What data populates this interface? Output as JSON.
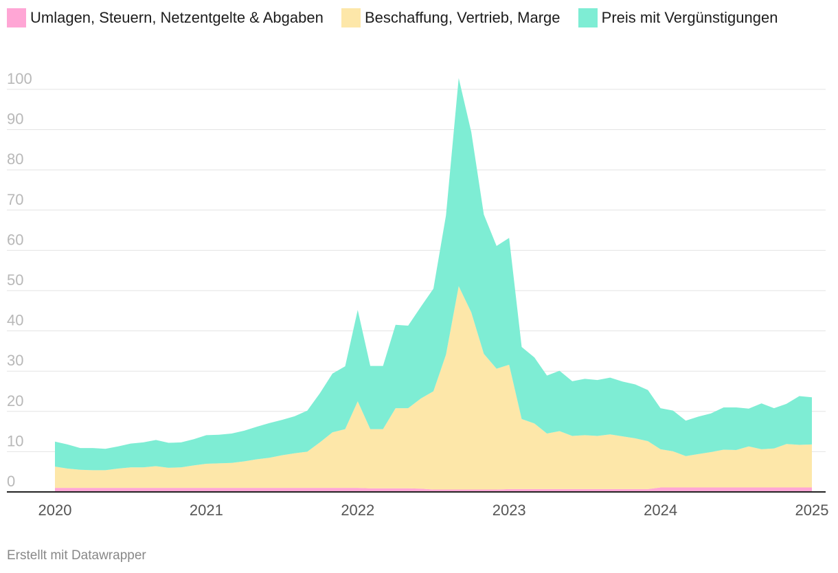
{
  "chart_data": {
    "type": "area",
    "stacked": true,
    "title": "",
    "xlabel": "",
    "ylabel": "",
    "ylim": [
      0,
      100
    ],
    "yticks": [
      0,
      10,
      20,
      30,
      40,
      50,
      60,
      70,
      80,
      90,
      100
    ],
    "xticks": [
      "2020",
      "2021",
      "2022",
      "2023",
      "2024",
      "2025"
    ],
    "xrange": [
      2020,
      2025
    ],
    "x": [
      2020.0,
      2020.083,
      2020.167,
      2020.25,
      2020.333,
      2020.417,
      2020.5,
      2020.583,
      2020.667,
      2020.75,
      2020.833,
      2020.917,
      2021.0,
      2021.083,
      2021.167,
      2021.25,
      2021.333,
      2021.417,
      2021.5,
      2021.583,
      2021.667,
      2021.75,
      2021.833,
      2021.917,
      2022.0,
      2022.083,
      2022.167,
      2022.25,
      2022.333,
      2022.417,
      2022.5,
      2022.583,
      2022.667,
      2022.75,
      2022.833,
      2022.917,
      2023.0,
      2023.083,
      2023.167,
      2023.25,
      2023.333,
      2023.417,
      2023.5,
      2023.583,
      2023.667,
      2023.75,
      2023.833,
      2023.917,
      2024.0,
      2024.083,
      2024.167,
      2024.25,
      2024.333,
      2024.417,
      2024.5,
      2024.583,
      2024.667,
      2024.75,
      2024.833,
      2024.917,
      2025.0
    ],
    "legend_position": "top",
    "series": [
      {
        "name": "Umlagen, Steuern, Netzentgelte & Abgaben",
        "color": "#ffa6d5",
        "values": [
          1.0,
          1.0,
          1.0,
          1.0,
          1.0,
          1.0,
          1.0,
          1.0,
          1.0,
          1.0,
          1.0,
          1.0,
          1.0,
          1.0,
          1.0,
          1.0,
          1.0,
          1.0,
          1.0,
          1.0,
          1.0,
          1.0,
          1.0,
          1.0,
          1.0,
          0.9,
          0.9,
          0.9,
          0.9,
          0.8,
          0.6,
          0.6,
          0.6,
          0.6,
          0.6,
          0.6,
          0.7,
          0.7,
          0.7,
          0.7,
          0.7,
          0.7,
          0.7,
          0.7,
          0.7,
          0.7,
          0.7,
          0.7,
          1.1,
          1.1,
          1.1,
          1.1,
          1.1,
          1.1,
          1.1,
          1.1,
          1.1,
          1.1,
          1.1,
          1.1,
          1.1
        ]
      },
      {
        "name": "Beschaffung, Vertrieb, Marge",
        "color": "#fde7a9",
        "values": [
          5.3,
          4.8,
          4.5,
          4.4,
          4.4,
          4.8,
          5.1,
          5.1,
          5.4,
          5.0,
          5.1,
          5.6,
          6.0,
          6.1,
          6.2,
          6.6,
          7.1,
          7.5,
          8.1,
          8.6,
          9.0,
          11.3,
          13.8,
          14.6,
          21.5,
          14.7,
          14.7,
          19.9,
          19.9,
          22.4,
          24.4,
          33.5,
          50.5,
          44.0,
          33.7,
          30.0,
          30.9,
          17.4,
          16.3,
          13.8,
          14.4,
          13.2,
          13.4,
          13.2,
          13.6,
          13.1,
          12.6,
          11.9,
          9.5,
          9.0,
          7.8,
          8.3,
          8.8,
          9.4,
          9.3,
          10.2,
          9.5,
          9.7,
          10.8,
          10.6,
          10.7
        ]
      },
      {
        "name": "Preis mit Vergünstigungen",
        "color": "#7eedd4",
        "values": [
          6.2,
          6.0,
          5.4,
          5.5,
          5.3,
          5.5,
          5.9,
          6.2,
          6.5,
          6.2,
          6.2,
          6.5,
          7.1,
          7.1,
          7.3,
          7.6,
          8.1,
          8.6,
          8.8,
          9.2,
          10.2,
          12.2,
          14.6,
          15.6,
          22.7,
          15.7,
          15.7,
          20.7,
          20.5,
          22.8,
          25.5,
          34.6,
          51.7,
          44.8,
          34.6,
          30.5,
          31.5,
          17.9,
          16.4,
          14.4,
          15.0,
          13.6,
          14.0,
          13.9,
          14.1,
          13.6,
          13.4,
          12.7,
          10.2,
          10.1,
          8.8,
          9.3,
          9.6,
          10.5,
          10.6,
          9.4,
          11.4,
          10.0,
          10.0,
          12.1,
          11.7
        ]
      }
    ]
  },
  "legend": {
    "items": [
      {
        "label": "Umlagen, Steuern, Netzentgelte & Abgaben",
        "color": "#ffa6d5"
      },
      {
        "label": "Beschaffung, Vertrieb, Marge",
        "color": "#fde7a9"
      },
      {
        "label": "Preis mit Vergünstigungen",
        "color": "#7eedd4"
      }
    ]
  },
  "footer": {
    "credit": "Erstellt mit Datawrapper"
  }
}
